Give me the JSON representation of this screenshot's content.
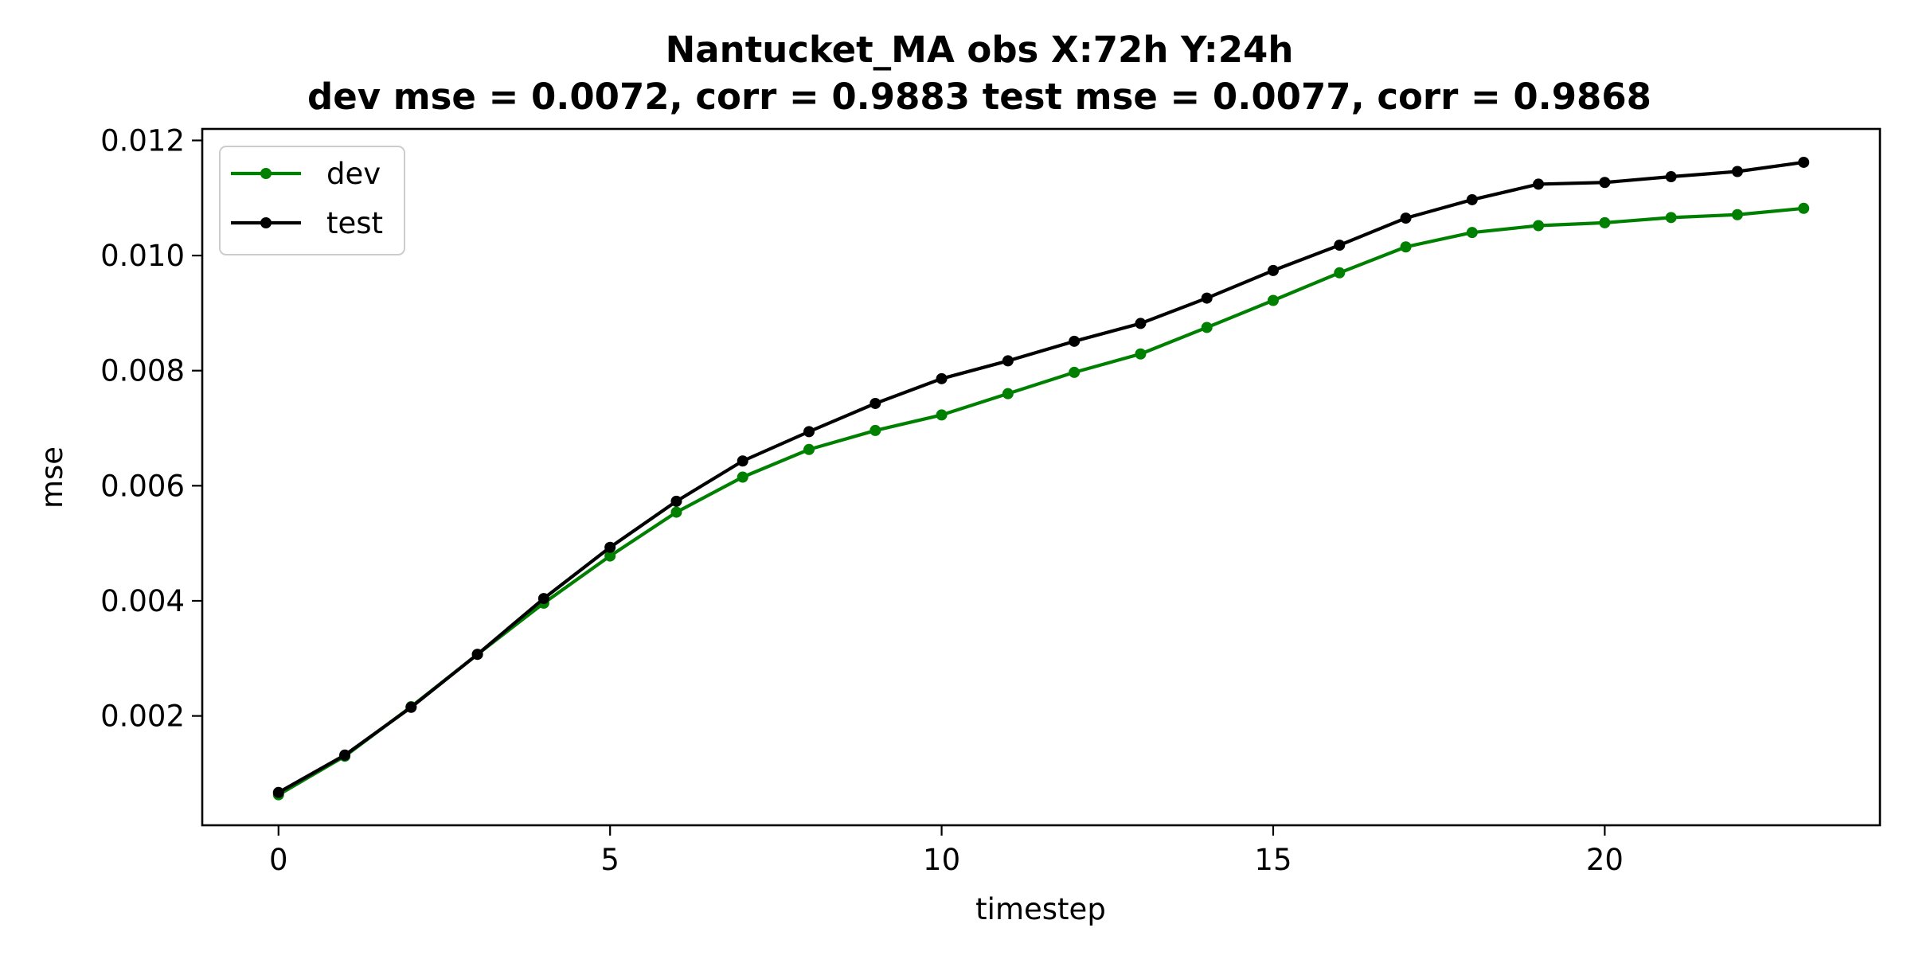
{
  "chart_data": {
    "type": "line",
    "title_line1": "Nantucket_MA   obs   X:72h   Y:24h",
    "title_line2": "dev mse = 0.0072, corr = 0.9883   test mse = 0.0077, corr = 0.9868",
    "xlabel": "timestep",
    "ylabel": "mse",
    "xlim": [
      -1.15,
      24.15
    ],
    "ylim": [
      0.0001,
      0.0122
    ],
    "xticks": [
      0,
      5,
      10,
      15,
      20
    ],
    "xtick_labels": [
      "0",
      "5",
      "10",
      "15",
      "20"
    ],
    "yticks": [
      0.002,
      0.004,
      0.006,
      0.008,
      0.01,
      0.012
    ],
    "ytick_labels": [
      "0.002",
      "0.004",
      "0.006",
      "0.008",
      "0.010",
      "0.012"
    ],
    "grid": false,
    "legend_position": "upper-left",
    "x": [
      0,
      1,
      2,
      3,
      4,
      5,
      6,
      7,
      8,
      9,
      10,
      11,
      12,
      13,
      14,
      15,
      16,
      17,
      18,
      19,
      20,
      21,
      22,
      23
    ],
    "series": [
      {
        "name": "dev",
        "color": "#008000",
        "values": [
          0.00063,
          0.0013,
          0.00216,
          0.00307,
          0.00396,
          0.00478,
          0.00554,
          0.00615,
          0.00663,
          0.00696,
          0.00723,
          0.0076,
          0.00797,
          0.00829,
          0.00875,
          0.00922,
          0.0097,
          0.01015,
          0.0104,
          0.01052,
          0.01057,
          0.01066,
          0.01071,
          0.01082
        ]
      },
      {
        "name": "test",
        "color": "#000000",
        "values": [
          0.00067,
          0.00132,
          0.00215,
          0.00307,
          0.00404,
          0.00493,
          0.00573,
          0.00643,
          0.00694,
          0.00743,
          0.00786,
          0.00817,
          0.00851,
          0.00882,
          0.00926,
          0.00974,
          0.01018,
          0.01065,
          0.01097,
          0.01124,
          0.01127,
          0.01137,
          0.01146,
          0.01162
        ]
      }
    ]
  }
}
